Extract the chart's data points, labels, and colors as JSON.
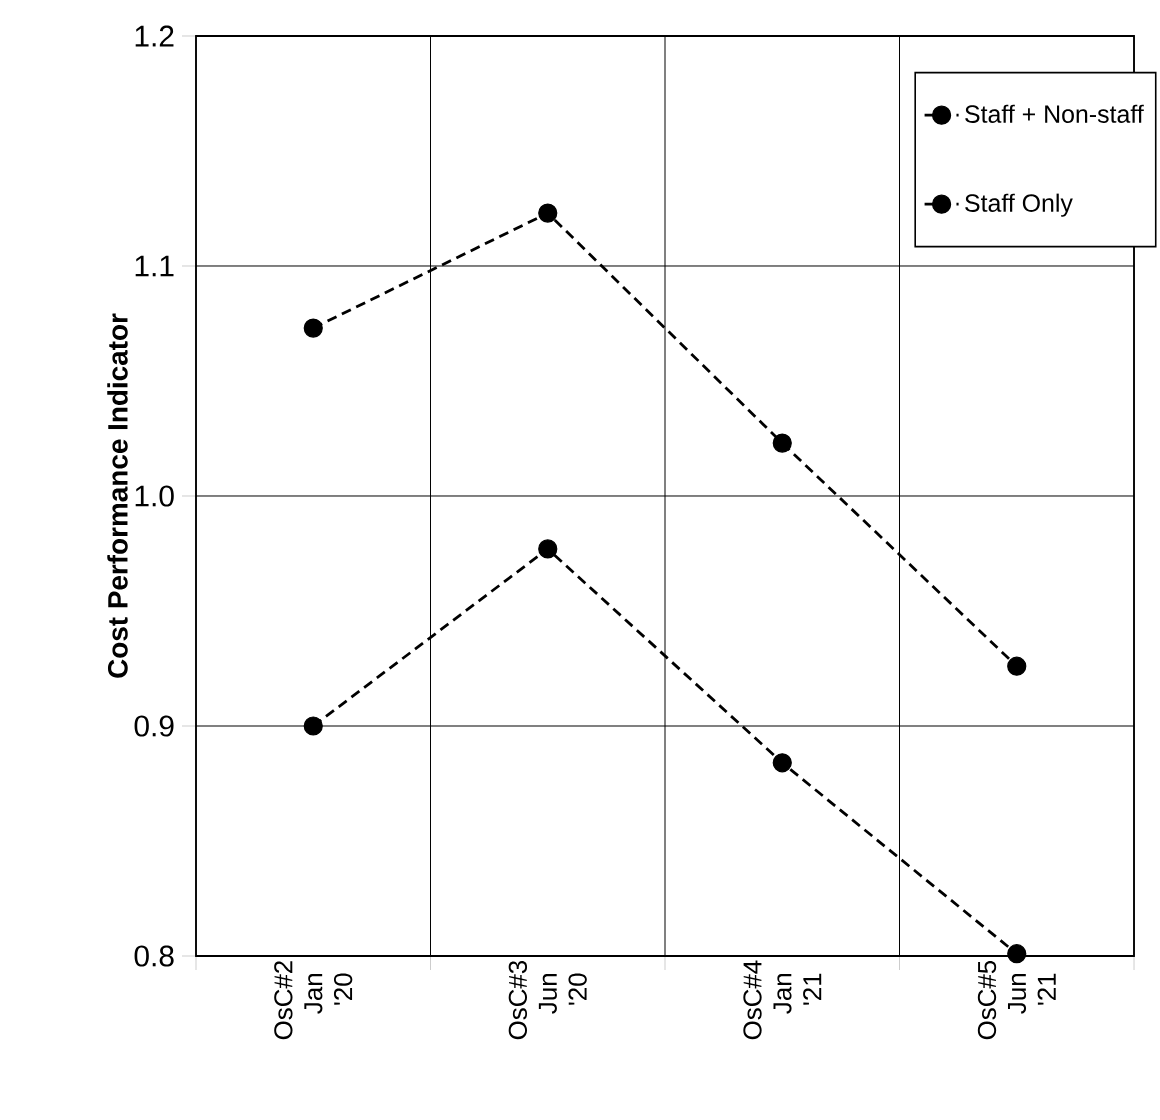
{
  "chart_data": {
    "type": "line",
    "ylabel": "Cost Performance Indicator",
    "categories": [
      "OsC#2 Jan '20",
      "OsC#3 Jun '20",
      "OsC#4 Jan '21",
      "OsC#5 Jun '21"
    ],
    "series": [
      {
        "name": "Staff + Non-staff",
        "color": "#000000",
        "values": [
          1.073,
          1.123,
          1.023,
          0.926
        ]
      },
      {
        "name": "Staff Only",
        "color": "#000000",
        "values": [
          0.9,
          0.977,
          0.884,
          0.801
        ]
      }
    ],
    "ylim": [
      0.8,
      1.2
    ],
    "yticks": [
      {
        "value": 0.8,
        "label": "0.8"
      },
      {
        "value": 0.9,
        "label": "0.9"
      },
      {
        "value": 1.0,
        "label": "1.0"
      },
      {
        "value": 1.1,
        "label": "1.1"
      },
      {
        "value": 1.2,
        "label": "1.2"
      }
    ],
    "grid": true,
    "legend": "top right",
    "marker": "circle",
    "line_style": "dashed"
  }
}
